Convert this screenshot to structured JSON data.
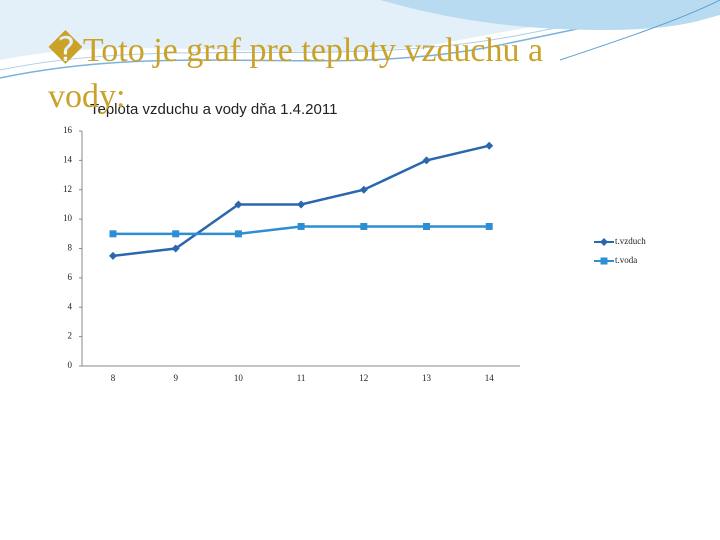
{
  "slide_title": "�Toto je graf pre teploty vzduchu a vody:",
  "chart_data": {
    "type": "line",
    "title": "Teplota vzduchu a vody dňa 1.4.2011",
    "categories": [
      "8",
      "9",
      "10",
      "11",
      "12",
      "13",
      "14"
    ],
    "series": [
      {
        "name": "t.vzduch",
        "color": "#2a67ad",
        "marker": "diamond",
        "values": [
          7.5,
          8,
          11,
          11,
          12,
          14,
          15
        ]
      },
      {
        "name": "t.voda",
        "color": "#2e8ed3",
        "marker": "square",
        "values": [
          9,
          9,
          9,
          9.5,
          9.5,
          9.5,
          9.5
        ]
      }
    ],
    "ylim": [
      0,
      16
    ],
    "yticks": [
      0,
      2,
      4,
      6,
      8,
      10,
      12,
      14,
      16
    ],
    "grid": false,
    "legend": "right"
  }
}
